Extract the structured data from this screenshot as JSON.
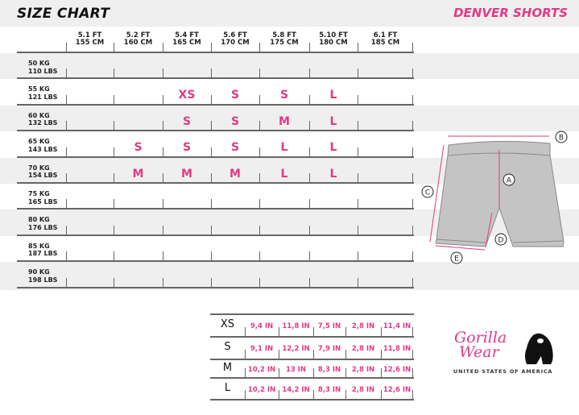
{
  "header": {
    "title": "SIZE CHART",
    "product": "DENVER SHORTS"
  },
  "accent_color": "#e23a86",
  "height_columns": [
    {
      "ft": "5.1 FT",
      "cm": "155 CM"
    },
    {
      "ft": "5.2 FT",
      "cm": "160 CM"
    },
    {
      "ft": "5.4 FT",
      "cm": "165 CM"
    },
    {
      "ft": "5.6 FT",
      "cm": "170 CM"
    },
    {
      "ft": "5.8 FT",
      "cm": "175 CM"
    },
    {
      "ft": "5.10 FT",
      "cm": "180 CM"
    },
    {
      "ft": "6.1 FT",
      "cm": "185 CM"
    }
  ],
  "weight_rows": [
    {
      "kg": "50 KG",
      "lbs": "110 LBS",
      "sizes": [
        "",
        "",
        "",
        "",
        "",
        "",
        ""
      ]
    },
    {
      "kg": "55 KG",
      "lbs": "121 LBS",
      "sizes": [
        "",
        "",
        "XS",
        "S",
        "S",
        "L",
        ""
      ]
    },
    {
      "kg": "60 KG",
      "lbs": "132 LBS",
      "sizes": [
        "",
        "",
        "S",
        "S",
        "M",
        "L",
        ""
      ]
    },
    {
      "kg": "65 KG",
      "lbs": "143 LBS",
      "sizes": [
        "",
        "S",
        "S",
        "S",
        "L",
        "L",
        ""
      ]
    },
    {
      "kg": "70 KG",
      "lbs": "154 LBS",
      "sizes": [
        "",
        "M",
        "M",
        "M",
        "L",
        "L",
        ""
      ]
    },
    {
      "kg": "75 KG",
      "lbs": "165 LBS",
      "sizes": [
        "",
        "",
        "",
        "",
        "",
        "",
        ""
      ]
    },
    {
      "kg": "80 KG",
      "lbs": "176 LBS",
      "sizes": [
        "",
        "",
        "",
        "",
        "",
        "",
        ""
      ]
    },
    {
      "kg": "85 KG",
      "lbs": "187  LBS",
      "sizes": [
        "",
        "",
        "",
        "",
        "",
        "",
        ""
      ]
    },
    {
      "kg": "90 KG",
      "lbs": "198  LBS",
      "sizes": [
        "",
        "",
        "",
        "",
        "",
        "",
        ""
      ]
    }
  ],
  "diagram": {
    "labels": [
      "A",
      "B",
      "C",
      "D",
      "E"
    ]
  },
  "measurements": [
    {
      "size": "XS",
      "values": [
        "9,4 IN",
        "11,8 IN",
        "7,5 IN",
        "2,8 IN",
        "11,4 IN"
      ]
    },
    {
      "size": "S",
      "values": [
        "9,1 IN",
        "12,2 IN",
        "7,9 IN",
        "2,8 IN",
        "11,8 IN"
      ]
    },
    {
      "size": "M",
      "values": [
        "10,2 IN",
        "13 IN",
        "8,3 IN",
        "2,8 IN",
        "12,6 IN"
      ]
    },
    {
      "size": "L",
      "values": [
        "10,2 IN",
        "14,2 IN",
        "8,3 IN",
        "2,8 IN",
        "12,6 IN"
      ]
    }
  ],
  "logo": {
    "line1": "Gorilla",
    "line2": "Wear",
    "tagline": "UNITED STATES OF AMERICA"
  }
}
